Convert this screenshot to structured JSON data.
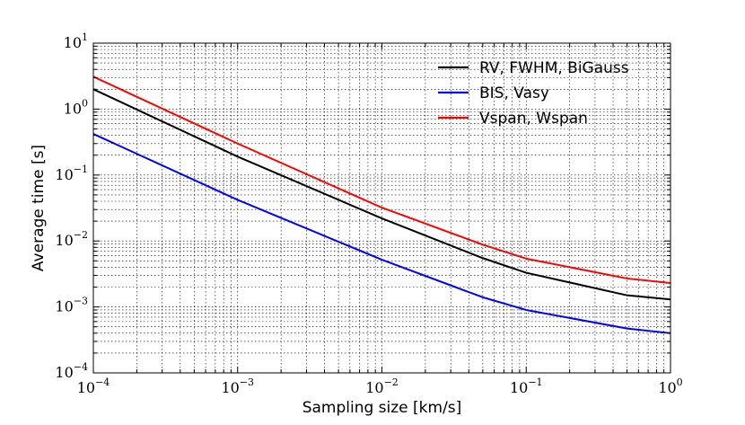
{
  "chart_data": {
    "type": "line",
    "title": "",
    "xlabel": "Sampling size [km/s]",
    "ylabel": "Average time [s]",
    "xscale": "log",
    "yscale": "log",
    "xlim": [
      0.0001,
      1
    ],
    "ylim": [
      0.0001,
      10
    ],
    "grid": true,
    "legend_position": "top-right",
    "x_ticks": [
      {
        "base": "10",
        "exp": "−4"
      },
      {
        "base": "10",
        "exp": "−3"
      },
      {
        "base": "10",
        "exp": "−2"
      },
      {
        "base": "10",
        "exp": "−1"
      },
      {
        "base": "10",
        "exp": "0"
      }
    ],
    "y_ticks": [
      {
        "base": "10",
        "exp": "−4"
      },
      {
        "base": "10",
        "exp": "−3"
      },
      {
        "base": "10",
        "exp": "−2"
      },
      {
        "base": "10",
        "exp": "−1"
      },
      {
        "base": "10",
        "exp": "0"
      },
      {
        "base": "10",
        "exp": "1"
      }
    ],
    "series": [
      {
        "name": "RV, FWHM, BiGauss",
        "color": "#000000",
        "x": [
          0.0001,
          0.001,
          0.01,
          0.05,
          0.1,
          0.5,
          1
        ],
        "y": [
          2.0,
          0.19,
          0.022,
          0.0055,
          0.0033,
          0.0015,
          0.0013
        ]
      },
      {
        "name": "BIS, Vasy",
        "color": "#0000ff",
        "x": [
          0.0001,
          0.001,
          0.01,
          0.05,
          0.1,
          0.5,
          1
        ],
        "y": [
          0.42,
          0.042,
          0.0052,
          0.0014,
          0.0009,
          0.00047,
          0.0004
        ]
      },
      {
        "name": "Vspan, Wspan",
        "color": "#ff0000",
        "x": [
          0.0001,
          0.001,
          0.01,
          0.05,
          0.1,
          0.5,
          1
        ],
        "y": [
          3.1,
          0.3,
          0.032,
          0.0088,
          0.0054,
          0.0027,
          0.0023
        ]
      }
    ]
  }
}
